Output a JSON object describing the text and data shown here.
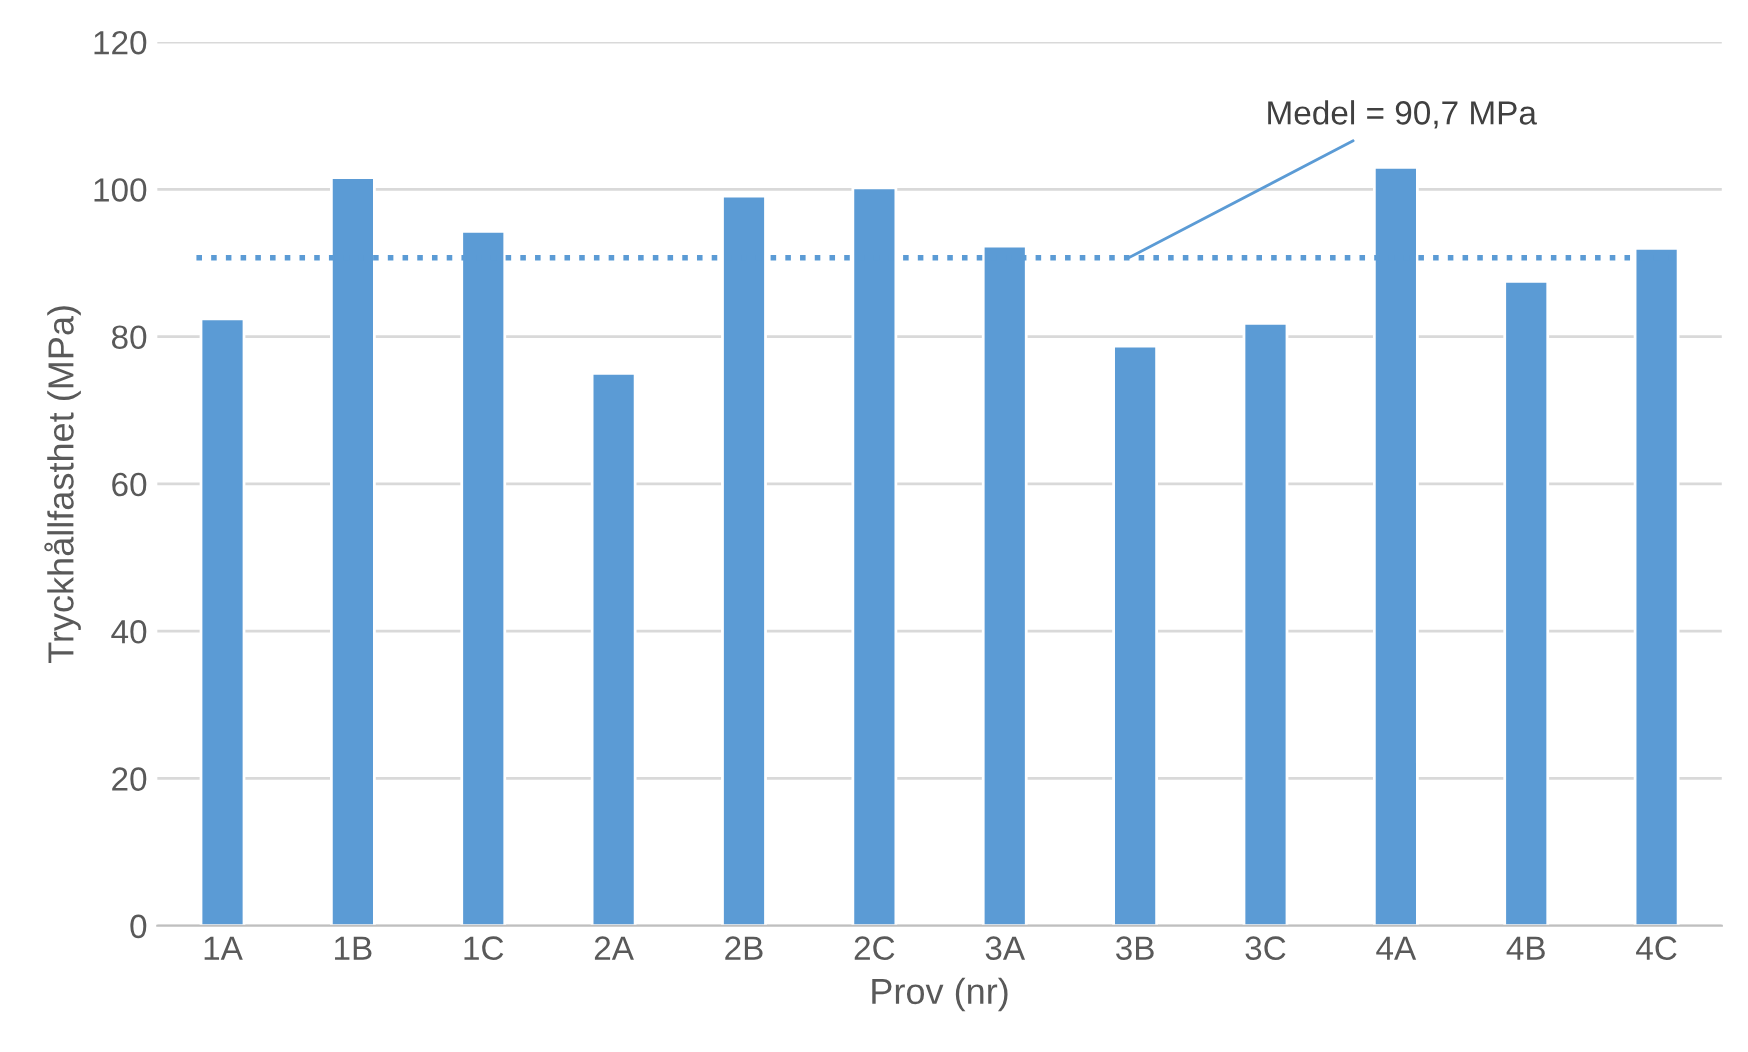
{
  "chart_data": {
    "type": "bar",
    "xlabel": "Prov (nr)",
    "ylabel": "Tryckhållfasthet (MPa)",
    "categories": [
      "1A",
      "1B",
      "1C",
      "2A",
      "2B",
      "2C",
      "3A",
      "3B",
      "3C",
      "4A",
      "4B",
      "4C"
    ],
    "values": [
      82.4,
      101.6,
      94.3,
      75.0,
      99.1,
      100.2,
      92.3,
      78.7,
      81.8,
      103.0,
      87.5,
      92.0
    ],
    "color": "#5b9bd5",
    "ylim": [
      0,
      120
    ],
    "yticks": [
      0,
      20,
      40,
      60,
      80,
      100,
      120
    ],
    "grid": "y",
    "ref_lines": [
      {
        "axis": "y",
        "value": 90.7,
        "label": "Medel = 90,7 MPa",
        "color": "#5b9bd5",
        "line_style": "dotted"
      }
    ]
  }
}
